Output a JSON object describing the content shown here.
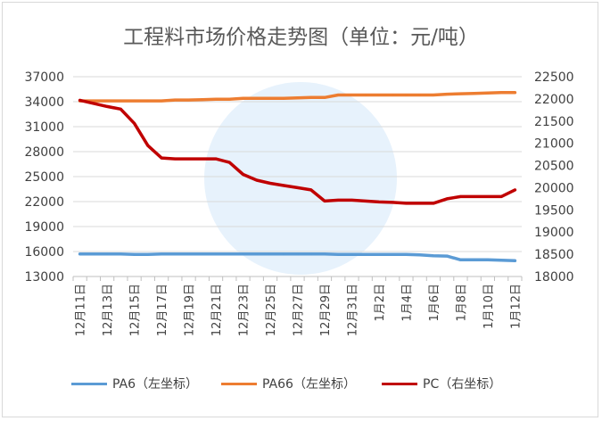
{
  "chart_data": {
    "type": "line",
    "title": "工程料市场价格走势图（单位：元/吨）",
    "x": [
      "12月11日",
      "12月12日",
      "12月13日",
      "12月14日",
      "12月15日",
      "12月16日",
      "12月17日",
      "12月18日",
      "12月19日",
      "12月20日",
      "12月21日",
      "12月22日",
      "12月23日",
      "12月24日",
      "12月25日",
      "12月26日",
      "12月27日",
      "12月28日",
      "12月29日",
      "12月30日",
      "12月31日",
      "1月1日",
      "1月2日",
      "1月3日",
      "1月4日",
      "1月5日",
      "1月6日",
      "1月7日",
      "1月8日",
      "1月9日",
      "1月10日",
      "1月11日",
      "1月12日"
    ],
    "x_tick_labels": [
      "12月11日",
      "12月13日",
      "12月15日",
      "12月17日",
      "12月19日",
      "12月21日",
      "12月23日",
      "12月25日",
      "12月27日",
      "12月29日",
      "12月31日",
      "1月2日",
      "1月4日",
      "1月6日",
      "1月8日",
      "1月10日",
      "1月12日"
    ],
    "left_axis": {
      "ylim": [
        13000,
        37000
      ],
      "ticks": [
        "13000",
        "16000",
        "19000",
        "22000",
        "25000",
        "28000",
        "31000",
        "34000",
        "37000"
      ]
    },
    "right_axis": {
      "ylim": [
        18000,
        22500
      ],
      "ticks": [
        "18000",
        "18500",
        "19000",
        "19500",
        "20000",
        "20500",
        "21000",
        "21500",
        "22000",
        "22500"
      ]
    },
    "grid": true,
    "legend_position": "bottom",
    "series": [
      {
        "name": "PA6（左坐标）",
        "axis": "left",
        "color": "#5b9bd5",
        "values": [
          15700,
          15700,
          15700,
          15700,
          15650,
          15650,
          15700,
          15700,
          15700,
          15700,
          15700,
          15700,
          15700,
          15700,
          15700,
          15700,
          15700,
          15700,
          15700,
          15650,
          15650,
          15650,
          15650,
          15650,
          15650,
          15600,
          15500,
          15450,
          15000,
          15000,
          15000,
          14950,
          14900
        ]
      },
      {
        "name": "PA66（左坐标）",
        "axis": "left",
        "color": "#ed7d31",
        "values": [
          34100,
          34100,
          34100,
          34100,
          34100,
          34100,
          34100,
          34200,
          34200,
          34250,
          34300,
          34300,
          34400,
          34400,
          34400,
          34400,
          34450,
          34500,
          34500,
          34800,
          34800,
          34800,
          34800,
          34800,
          34800,
          34800,
          34800,
          34900,
          34950,
          35000,
          35050,
          35100,
          35100
        ]
      },
      {
        "name": "PC（右坐标）",
        "axis": "right",
        "color": "#c00000",
        "values": [
          21970,
          21900,
          21830,
          21770,
          21450,
          20950,
          20670,
          20650,
          20650,
          20650,
          20650,
          20570,
          20300,
          20170,
          20100,
          20050,
          20000,
          19950,
          19700,
          19720,
          19720,
          19700,
          19680,
          19670,
          19650,
          19650,
          19650,
          19750,
          19800,
          19800,
          19800,
          19800,
          19950
        ]
      }
    ]
  }
}
